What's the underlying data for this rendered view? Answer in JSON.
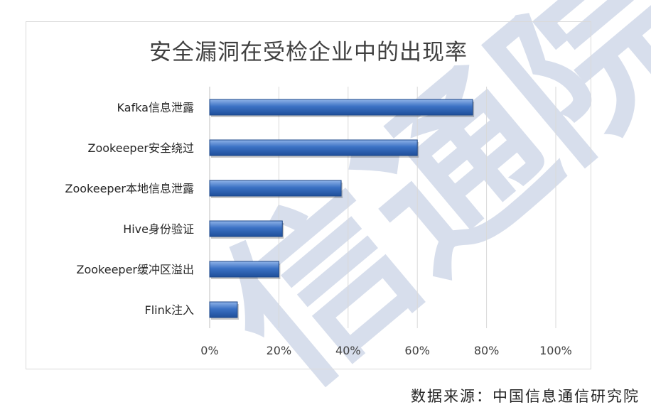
{
  "watermark": {
    "text": "信通院",
    "color": "#c9d3e6"
  },
  "chart_data": {
    "type": "bar",
    "orientation": "horizontal",
    "title": "安全漏洞在受检企业中的出现率",
    "categories": [
      "Kafka信息泄露",
      "Zookeeper安全绕过",
      "Zookeeper本地信息泄露",
      "Hive身份验证",
      "Zookeeper缓冲区溢出",
      "Flink注入"
    ],
    "values": [
      0.76,
      0.6,
      0.38,
      0.21,
      0.2,
      0.08
    ],
    "xlim": [
      0,
      1
    ],
    "xticks": [
      "0%",
      "20%",
      "40%",
      "60%",
      "80%",
      "100%"
    ],
    "grid": true,
    "bar_color": "#2e63b5"
  },
  "source": "数据来源：中国信息通信研究院"
}
